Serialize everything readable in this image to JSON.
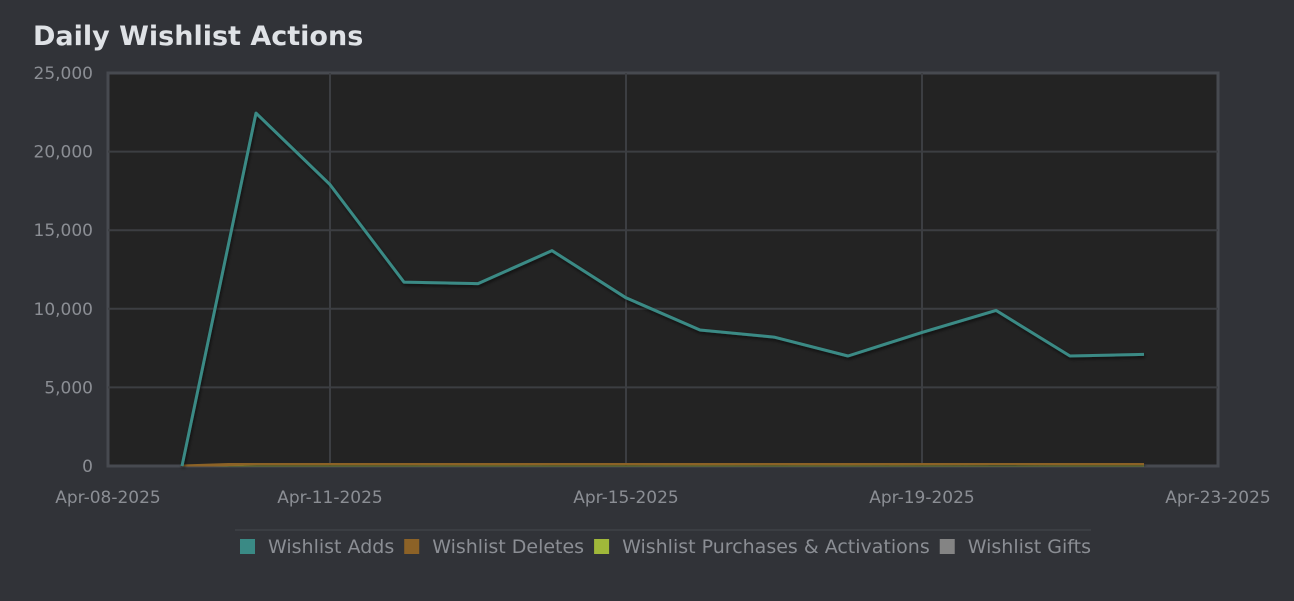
{
  "chart_data": {
    "type": "line",
    "title": "Daily Wishlist Actions",
    "xlabel": "",
    "ylabel": "",
    "x_dates": [
      "2025-04-09",
      "2025-04-10",
      "2025-04-11",
      "2025-04-12",
      "2025-04-13",
      "2025-04-14",
      "2025-04-15",
      "2025-04-16",
      "2025-04-17",
      "2025-04-18",
      "2025-04-19",
      "2025-04-20",
      "2025-04-21",
      "2025-04-22"
    ],
    "x_ticks": [
      "Apr-08-2025",
      "Apr-11-2025",
      "Apr-15-2025",
      "Apr-19-2025",
      "Apr-23-2025"
    ],
    "x_range": [
      "2025-04-08",
      "2025-04-23"
    ],
    "y_ticks": [
      "0",
      "5,000",
      "10,000",
      "15,000",
      "20,000",
      "25,000"
    ],
    "ylim": [
      0,
      25000
    ],
    "grid": true,
    "legend_position": "bottom",
    "series": [
      {
        "name": "Wishlist Adds",
        "color": "#3a8a85",
        "values": [
          0,
          22450,
          17900,
          11700,
          11600,
          13700,
          10700,
          8650,
          8200,
          7000,
          8500,
          9900,
          7000,
          7100
        ]
      },
      {
        "name": "Wishlist Deletes",
        "color": "#8c6227",
        "values": [
          0,
          150,
          150,
          150,
          140,
          150,
          150,
          140,
          150,
          140,
          150,
          160,
          150,
          150
        ]
      },
      {
        "name": "Wishlist Purchases & Activations",
        "color": "#a0b83a",
        "values": [
          0,
          20,
          20,
          20,
          20,
          20,
          20,
          20,
          20,
          20,
          20,
          20,
          20,
          20
        ]
      },
      {
        "name": "Wishlist Gifts",
        "color": "#848484",
        "values": [
          0,
          0,
          0,
          0,
          0,
          0,
          0,
          0,
          0,
          0,
          0,
          0,
          0,
          0
        ]
      }
    ]
  }
}
